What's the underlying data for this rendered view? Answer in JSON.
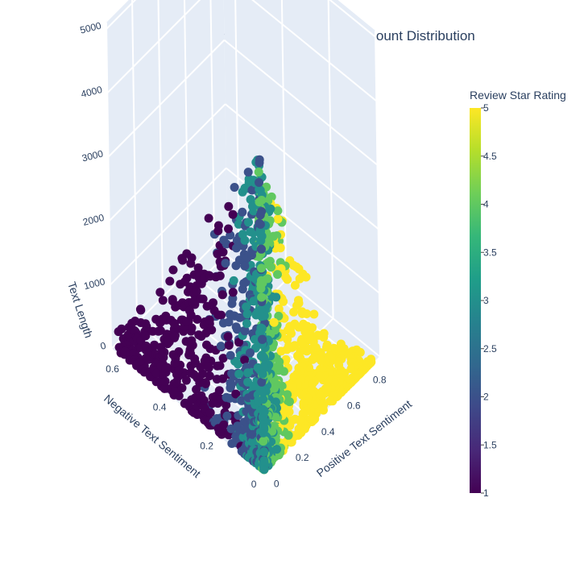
{
  "chart_data": {
    "type": "scatter3d",
    "title": "Business Star Rating vs Business Review Count Distribution",
    "x_axis": {
      "label": "Positive Text Sentiment",
      "ticks": [
        "0",
        "0.2",
        "0.4",
        "0.6",
        "0.8"
      ],
      "range": [
        0,
        0.9
      ]
    },
    "y_axis": {
      "label": "Negative Text Sentiment",
      "ticks": [
        "0",
        "0.2",
        "0.4",
        "0.6"
      ],
      "range": [
        0,
        0.65
      ]
    },
    "z_axis": {
      "label": "Text Length",
      "ticks": [
        "0",
        "1000",
        "2000",
        "3000",
        "4000",
        "5000"
      ],
      "range": [
        0,
        5100
      ]
    },
    "colorbar": {
      "title": "Review Star Rating",
      "ticks": [
        "1",
        "1.5",
        "2",
        "2.5",
        "3",
        "3.5",
        "4",
        "4.5",
        "5"
      ],
      "range": [
        1,
        5
      ],
      "colorscale": [
        "#440154",
        "#482878",
        "#3e4989",
        "#31688e",
        "#26828e",
        "#1f9e89",
        "#35b779",
        "#6ece58",
        "#b5de2b",
        "#fde725"
      ]
    },
    "grid": true,
    "legend": "none"
  }
}
